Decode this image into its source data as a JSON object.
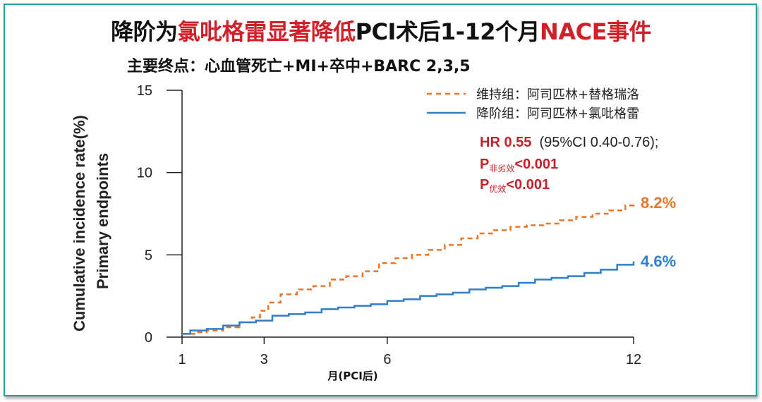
{
  "title": {
    "part1": "降阶为",
    "part2": "氯吡格雷显著降低",
    "part3": "PCI术后1-12个月",
    "part4": "NACE事件"
  },
  "subtitle": "主要终点：心血管死亡+MI+卒中+BARC 2,3,5",
  "colors": {
    "orange": "#e8772e",
    "blue": "#2f7fcc",
    "red": "#c8202a",
    "frame": "#1fa3a3"
  },
  "stats": {
    "hr_label": "HR 0.55",
    "hr_ci": "(95%CI 0.40-0.76);",
    "p1_main": "P",
    "p1_sub": "非劣效",
    "p1_val": "<0.001",
    "p2_main": "P",
    "p2_sub": "优效",
    "p2_val": "<0.001"
  },
  "chart_data": {
    "type": "line",
    "xlabel": "月(PCI后)",
    "ylabel": [
      "Cumulative incidence rate(%)",
      "Primary endpoints"
    ],
    "xticks": [
      1,
      3,
      6,
      12
    ],
    "yticks": [
      0,
      5,
      10,
      15
    ],
    "xlim": [
      1,
      12
    ],
    "ylim": [
      0,
      15
    ],
    "series": [
      {
        "name": "维持组：阿司匹林+替格瑞洛",
        "style": "dashed",
        "color": "#e8772e",
        "end_label": "8.2%",
        "x": [
          1,
          1.3,
          1.6,
          2.0,
          2.4,
          2.7,
          2.9,
          3.1,
          3.4,
          3.8,
          4.2,
          4.6,
          5.0,
          5.4,
          5.8,
          6.2,
          6.6,
          7.0,
          7.4,
          7.8,
          8.2,
          8.6,
          9.0,
          9.4,
          9.8,
          10.2,
          10.6,
          11.0,
          11.4,
          11.8,
          12
        ],
        "y": [
          0.2,
          0.3,
          0.4,
          0.6,
          0.9,
          1.2,
          1.6,
          2.1,
          2.6,
          2.9,
          3.1,
          3.5,
          3.7,
          4.0,
          4.5,
          4.8,
          5.0,
          5.3,
          5.6,
          6.0,
          6.3,
          6.5,
          6.7,
          6.8,
          6.9,
          7.1,
          7.3,
          7.5,
          7.7,
          8.0,
          8.2
        ]
      },
      {
        "name": "降阶组：阿司匹林+氯吡格雷",
        "style": "solid",
        "color": "#2f7fcc",
        "end_label": "4.6%",
        "x": [
          1,
          1.2,
          1.6,
          2.0,
          2.4,
          2.8,
          3.2,
          3.6,
          4.0,
          4.4,
          4.8,
          5.2,
          5.6,
          6.0,
          6.4,
          6.8,
          7.2,
          7.6,
          8.0,
          8.4,
          8.8,
          9.2,
          9.6,
          10.0,
          10.4,
          10.8,
          11.2,
          11.6,
          12
        ],
        "y": [
          0.2,
          0.4,
          0.5,
          0.7,
          0.9,
          1.0,
          1.3,
          1.4,
          1.5,
          1.7,
          1.8,
          1.9,
          2.0,
          2.2,
          2.3,
          2.5,
          2.6,
          2.7,
          2.9,
          3.0,
          3.1,
          3.3,
          3.5,
          3.6,
          3.7,
          3.9,
          4.1,
          4.4,
          4.6
        ]
      }
    ]
  }
}
